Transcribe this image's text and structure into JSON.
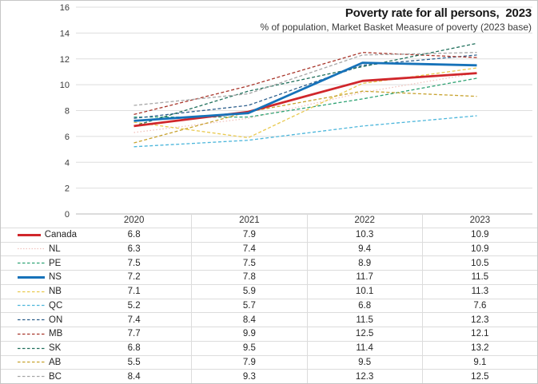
{
  "header": {
    "title": "Poverty rate for all persons,  2023",
    "subtitle": "% of population, Market Basket Measure of poverty (2023 base)"
  },
  "chart_data": {
    "type": "line",
    "title": "Poverty rate for all persons, 2023",
    "subtitle": "% of population, Market Basket Measure of poverty (2023 base)",
    "x": [
      "2020",
      "2021",
      "2022",
      "2023"
    ],
    "ylim": [
      0,
      16
    ],
    "ytick_step": 2,
    "yticks": [
      0,
      2,
      4,
      6,
      8,
      10,
      12,
      14,
      16
    ],
    "grid": "horizontal",
    "legend_position": "table-left-of-data-table",
    "series": [
      {
        "name": "Canada",
        "values": [
          6.8,
          7.9,
          10.3,
          10.9
        ],
        "color": "#d0262b",
        "style": "solid"
      },
      {
        "name": "NL",
        "values": [
          6.3,
          7.4,
          9.4,
          10.9
        ],
        "color": "#f2c6c0",
        "style": "dotted"
      },
      {
        "name": "PE",
        "values": [
          7.5,
          7.5,
          8.9,
          10.5
        ],
        "color": "#2fa374",
        "style": "dashed"
      },
      {
        "name": "NS",
        "values": [
          7.2,
          7.8,
          11.7,
          11.5
        ],
        "color": "#1672b9",
        "style": "solid"
      },
      {
        "name": "NB",
        "values": [
          7.1,
          5.9,
          10.1,
          11.3
        ],
        "color": "#e9c94e",
        "style": "dashed"
      },
      {
        "name": "QC",
        "values": [
          5.2,
          5.7,
          6.8,
          7.6
        ],
        "color": "#4cb6db",
        "style": "dashed"
      },
      {
        "name": "ON",
        "values": [
          7.4,
          8.4,
          11.5,
          12.3
        ],
        "color": "#2d5f8d",
        "style": "dashed"
      },
      {
        "name": "MB",
        "values": [
          7.7,
          9.9,
          12.5,
          12.1
        ],
        "color": "#a8352a",
        "style": "dashed"
      },
      {
        "name": "SK",
        "values": [
          6.8,
          9.5,
          11.4,
          13.2
        ],
        "color": "#20705c",
        "style": "dashed"
      },
      {
        "name": "AB",
        "values": [
          5.5,
          7.9,
          9.5,
          9.1
        ],
        "color": "#c7a22e",
        "style": "dashed"
      },
      {
        "name": "BC",
        "values": [
          8.4,
          9.3,
          12.3,
          12.5
        ],
        "color": "#a6a6a6",
        "style": "dashed"
      }
    ],
    "colors": {
      "gridline": "#dedede",
      "axis_line": "#b9b9b9",
      "tick_label": "#3a3a3a",
      "table_border": "#dcdcdc"
    }
  }
}
